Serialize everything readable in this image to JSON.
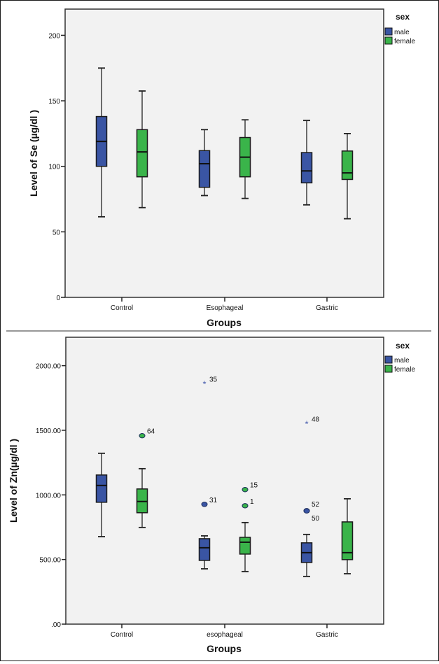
{
  "chart_data": [
    {
      "type": "boxplot",
      "title": "",
      "xlabel": "Groups",
      "ylabel": "Level of Se (µg/dl )",
      "ylim": [
        0,
        220
      ],
      "yticks": [
        0,
        50,
        100,
        150,
        200
      ],
      "ytick_labels": [
        "0",
        "50",
        "100",
        "150",
        "200"
      ],
      "categories": [
        "Control",
        "Esophageal",
        "Gastric"
      ],
      "grid": false,
      "legend": {
        "title": "sex",
        "position": "right",
        "entries": [
          "male",
          "female"
        ]
      },
      "series": [
        {
          "name": "male",
          "color": "#3a55a4",
          "boxes": [
            {
              "whisker_low": 61.5,
              "q1": 100,
              "median": 119,
              "q3": 138,
              "whisker_high": 175,
              "outliers": []
            },
            {
              "whisker_low": 77.7,
              "q1": 84,
              "median": 102,
              "q3": 112,
              "whisker_high": 128,
              "outliers": []
            },
            {
              "whisker_low": 70.6,
              "q1": 87.4,
              "median": 96.5,
              "q3": 110.5,
              "whisker_high": 135,
              "outliers": []
            }
          ]
        },
        {
          "name": "female",
          "color": "#3ab44a",
          "boxes": [
            {
              "whisker_low": 68.5,
              "q1": 92,
              "median": 111,
              "q3": 128,
              "whisker_high": 157.5,
              "outliers": []
            },
            {
              "whisker_low": 75.5,
              "q1": 92,
              "median": 107,
              "q3": 122,
              "whisker_high": 135.5,
              "outliers": []
            },
            {
              "whisker_low": 60,
              "q1": 90,
              "median": 95,
              "q3": 111.7,
              "whisker_high": 125,
              "outliers": []
            }
          ]
        }
      ]
    },
    {
      "type": "boxplot",
      "title": "",
      "xlabel": "Groups",
      "ylabel": "Level of Zn(µg/dl )",
      "ylim": [
        0,
        2220
      ],
      "yticks": [
        0,
        500,
        1000,
        1500,
        2000
      ],
      "ytick_labels": [
        ".00",
        "500.00",
        "1000.00",
        "1500.00",
        "2000.00"
      ],
      "categories": [
        "Control",
        "esophageal",
        "Gastric"
      ],
      "grid": false,
      "legend": {
        "title": "sex",
        "position": "right",
        "entries": [
          "male",
          "female"
        ]
      },
      "series": [
        {
          "name": "male",
          "color": "#3a55a4",
          "boxes": [
            {
              "whisker_low": 677,
              "q1": 943,
              "median": 1073,
              "q3": 1154,
              "whisker_high": 1322,
              "outliers": []
            },
            {
              "whisker_low": 428,
              "q1": 493,
              "median": 591,
              "q3": 661,
              "whisker_high": 683,
              "outliers": [
                {
                  "value": 927,
                  "label": "31",
                  "kind": "circle"
                },
                {
                  "value": 1859,
                  "label": "35",
                  "kind": "star"
                }
              ]
            },
            {
              "whisker_low": 369,
              "q1": 477,
              "median": 553,
              "q3": 629,
              "whisker_high": 694,
              "outliers": [
                {
                  "value": 878,
                  "label": "52",
                  "kind": "circle",
                  "label_pos": "above"
                },
                {
                  "value": 876,
                  "label": "50",
                  "kind": "circle",
                  "label_pos": "below"
                },
                {
                  "value": 1550,
                  "label": "48",
                  "kind": "star"
                }
              ]
            }
          ]
        },
        {
          "name": "female",
          "color": "#3ab44a",
          "boxes": [
            {
              "whisker_low": 748,
              "q1": 862,
              "median": 949,
              "q3": 1046,
              "whisker_high": 1203,
              "outliers": [
                {
                  "value": 1458,
                  "label": "64",
                  "kind": "circle"
                }
              ]
            },
            {
              "whisker_low": 407,
              "q1": 542,
              "median": 634,
              "q3": 672,
              "whisker_high": 786,
              "outliers": [
                {
                  "value": 916,
                  "label": "1",
                  "kind": "circle"
                },
                {
                  "value": 1041,
                  "label": "15",
                  "kind": "circle"
                }
              ]
            },
            {
              "whisker_low": 390,
              "q1": 499,
              "median": 553,
              "q3": 791,
              "whisker_high": 970,
              "outliers": []
            }
          ]
        }
      ]
    }
  ]
}
